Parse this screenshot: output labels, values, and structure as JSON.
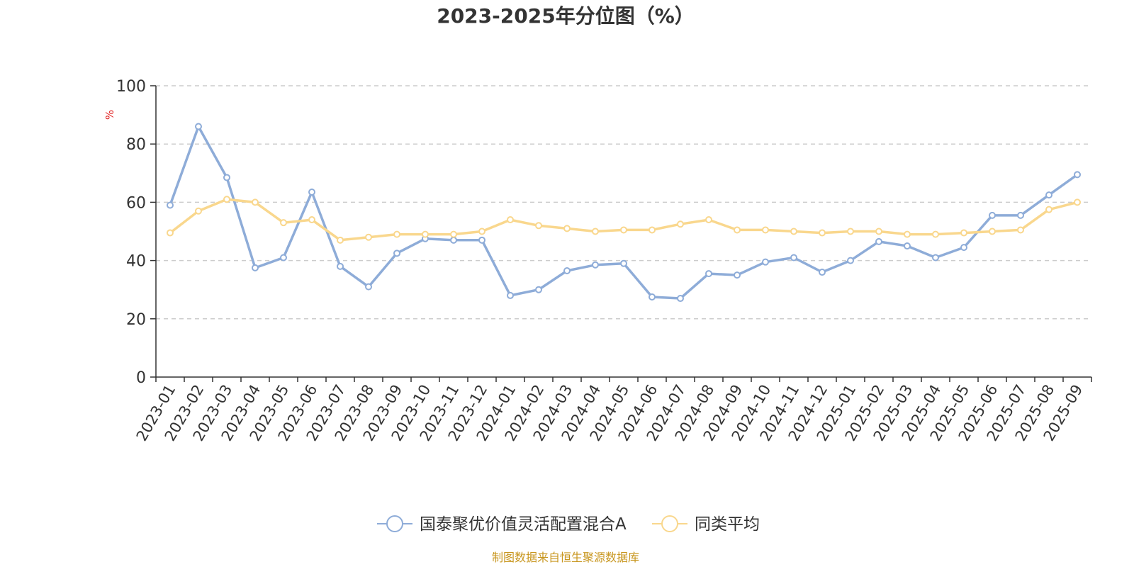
{
  "chart_data": {
    "type": "line",
    "title": "2023-2025年分位图（%）",
    "ylabel": "%",
    "xlabel": "",
    "ylim": [
      0,
      100
    ],
    "yticks": [
      0,
      20,
      40,
      60,
      80,
      100
    ],
    "grid": true,
    "legend_position": "bottom-center",
    "categories": [
      "2023-01",
      "2023-02",
      "2023-03",
      "2023-04",
      "2023-05",
      "2023-06",
      "2023-07",
      "2023-08",
      "2023-09",
      "2023-10",
      "2023-11",
      "2023-12",
      "2024-01",
      "2024-02",
      "2024-03",
      "2024-04",
      "2024-05",
      "2024-06",
      "2024-07",
      "2024-08",
      "2024-09",
      "2024-10",
      "2024-11",
      "2024-12",
      "2025-01",
      "2025-02",
      "2025-03",
      "2025-04",
      "2025-05",
      "2025-06",
      "2025-07",
      "2025-08",
      "2025-09"
    ],
    "series": [
      {
        "name": "国泰聚优价值灵活配置混合A",
        "color": "#8eacd8",
        "values": [
          59,
          86,
          68.5,
          37.5,
          41,
          63.5,
          38,
          31,
          42.5,
          47.5,
          47,
          47,
          28,
          30,
          36.5,
          38.5,
          39,
          27.5,
          27,
          35.5,
          35,
          39.5,
          41,
          36,
          40,
          46.5,
          45,
          41,
          44.5,
          55.5,
          55.5,
          62.5,
          69.5
        ]
      },
      {
        "name": "同类平均",
        "color": "#f9d78d",
        "values": [
          49.5,
          57,
          61,
          60,
          53,
          54,
          47,
          48,
          49,
          49,
          49,
          50,
          54,
          52,
          51,
          50,
          50.5,
          50.5,
          52.5,
          54,
          50.5,
          50.5,
          50,
          49.5,
          50,
          50,
          49,
          49,
          49.5,
          50,
          50.5,
          57.5,
          60
        ]
      }
    ]
  },
  "source": "制图数据来自恒生聚源数据库"
}
